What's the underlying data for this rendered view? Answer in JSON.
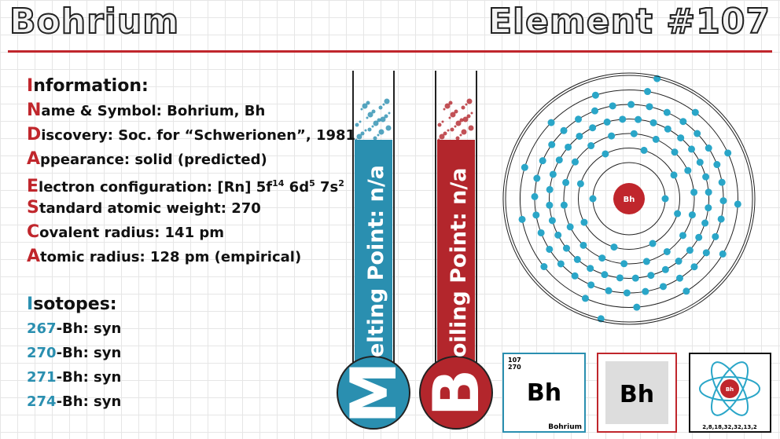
{
  "header": {
    "title": "Bohrium",
    "element": "Element #107"
  },
  "info": {
    "heading": "Information:",
    "items": [
      [
        "Name & Symbol: Bohrium, Bh"
      ],
      [
        "Discovery: Soc. for “Schwerionen”, 1981"
      ],
      [
        "Appearance: solid (predicted)"
      ],
      [
        "Electron configuration: [Rn] 5f",
        "14",
        " 6d",
        "5",
        " 7s",
        "2"
      ],
      [
        "Standard atomic weight: 270"
      ],
      [
        "Covalent radius: 141 pm"
      ],
      [
        "Atomic radius: 128 pm (empirical)"
      ]
    ]
  },
  "isotopes": {
    "heading": "Isotopes:",
    "items": [
      {
        "mass": "267",
        "rest": "-Bh: syn"
      },
      {
        "mass": "270",
        "rest": "-Bh: syn"
      },
      {
        "mass": "271",
        "rest": "-Bh: syn"
      },
      {
        "mass": "274",
        "rest": "-Bh: syn"
      }
    ]
  },
  "thermometers": [
    {
      "initial": "M",
      "rest": "elting Point: n/a",
      "color": "#2a8fb0"
    },
    {
      "initial": "B",
      "rest": "oiling Point: n/a",
      "color": "#b3262c"
    }
  ],
  "atom": {
    "symbol": "Bh",
    "shells": [
      2,
      8,
      18,
      32,
      32,
      13,
      2
    ]
  },
  "tiles": {
    "number": "107",
    "weight": "270",
    "symbol": "Bh",
    "name": "Bohrium",
    "symbol2": "Bh",
    "symbol3": "Bh",
    "shell_label": "2,8,18,32,32,13,2"
  }
}
